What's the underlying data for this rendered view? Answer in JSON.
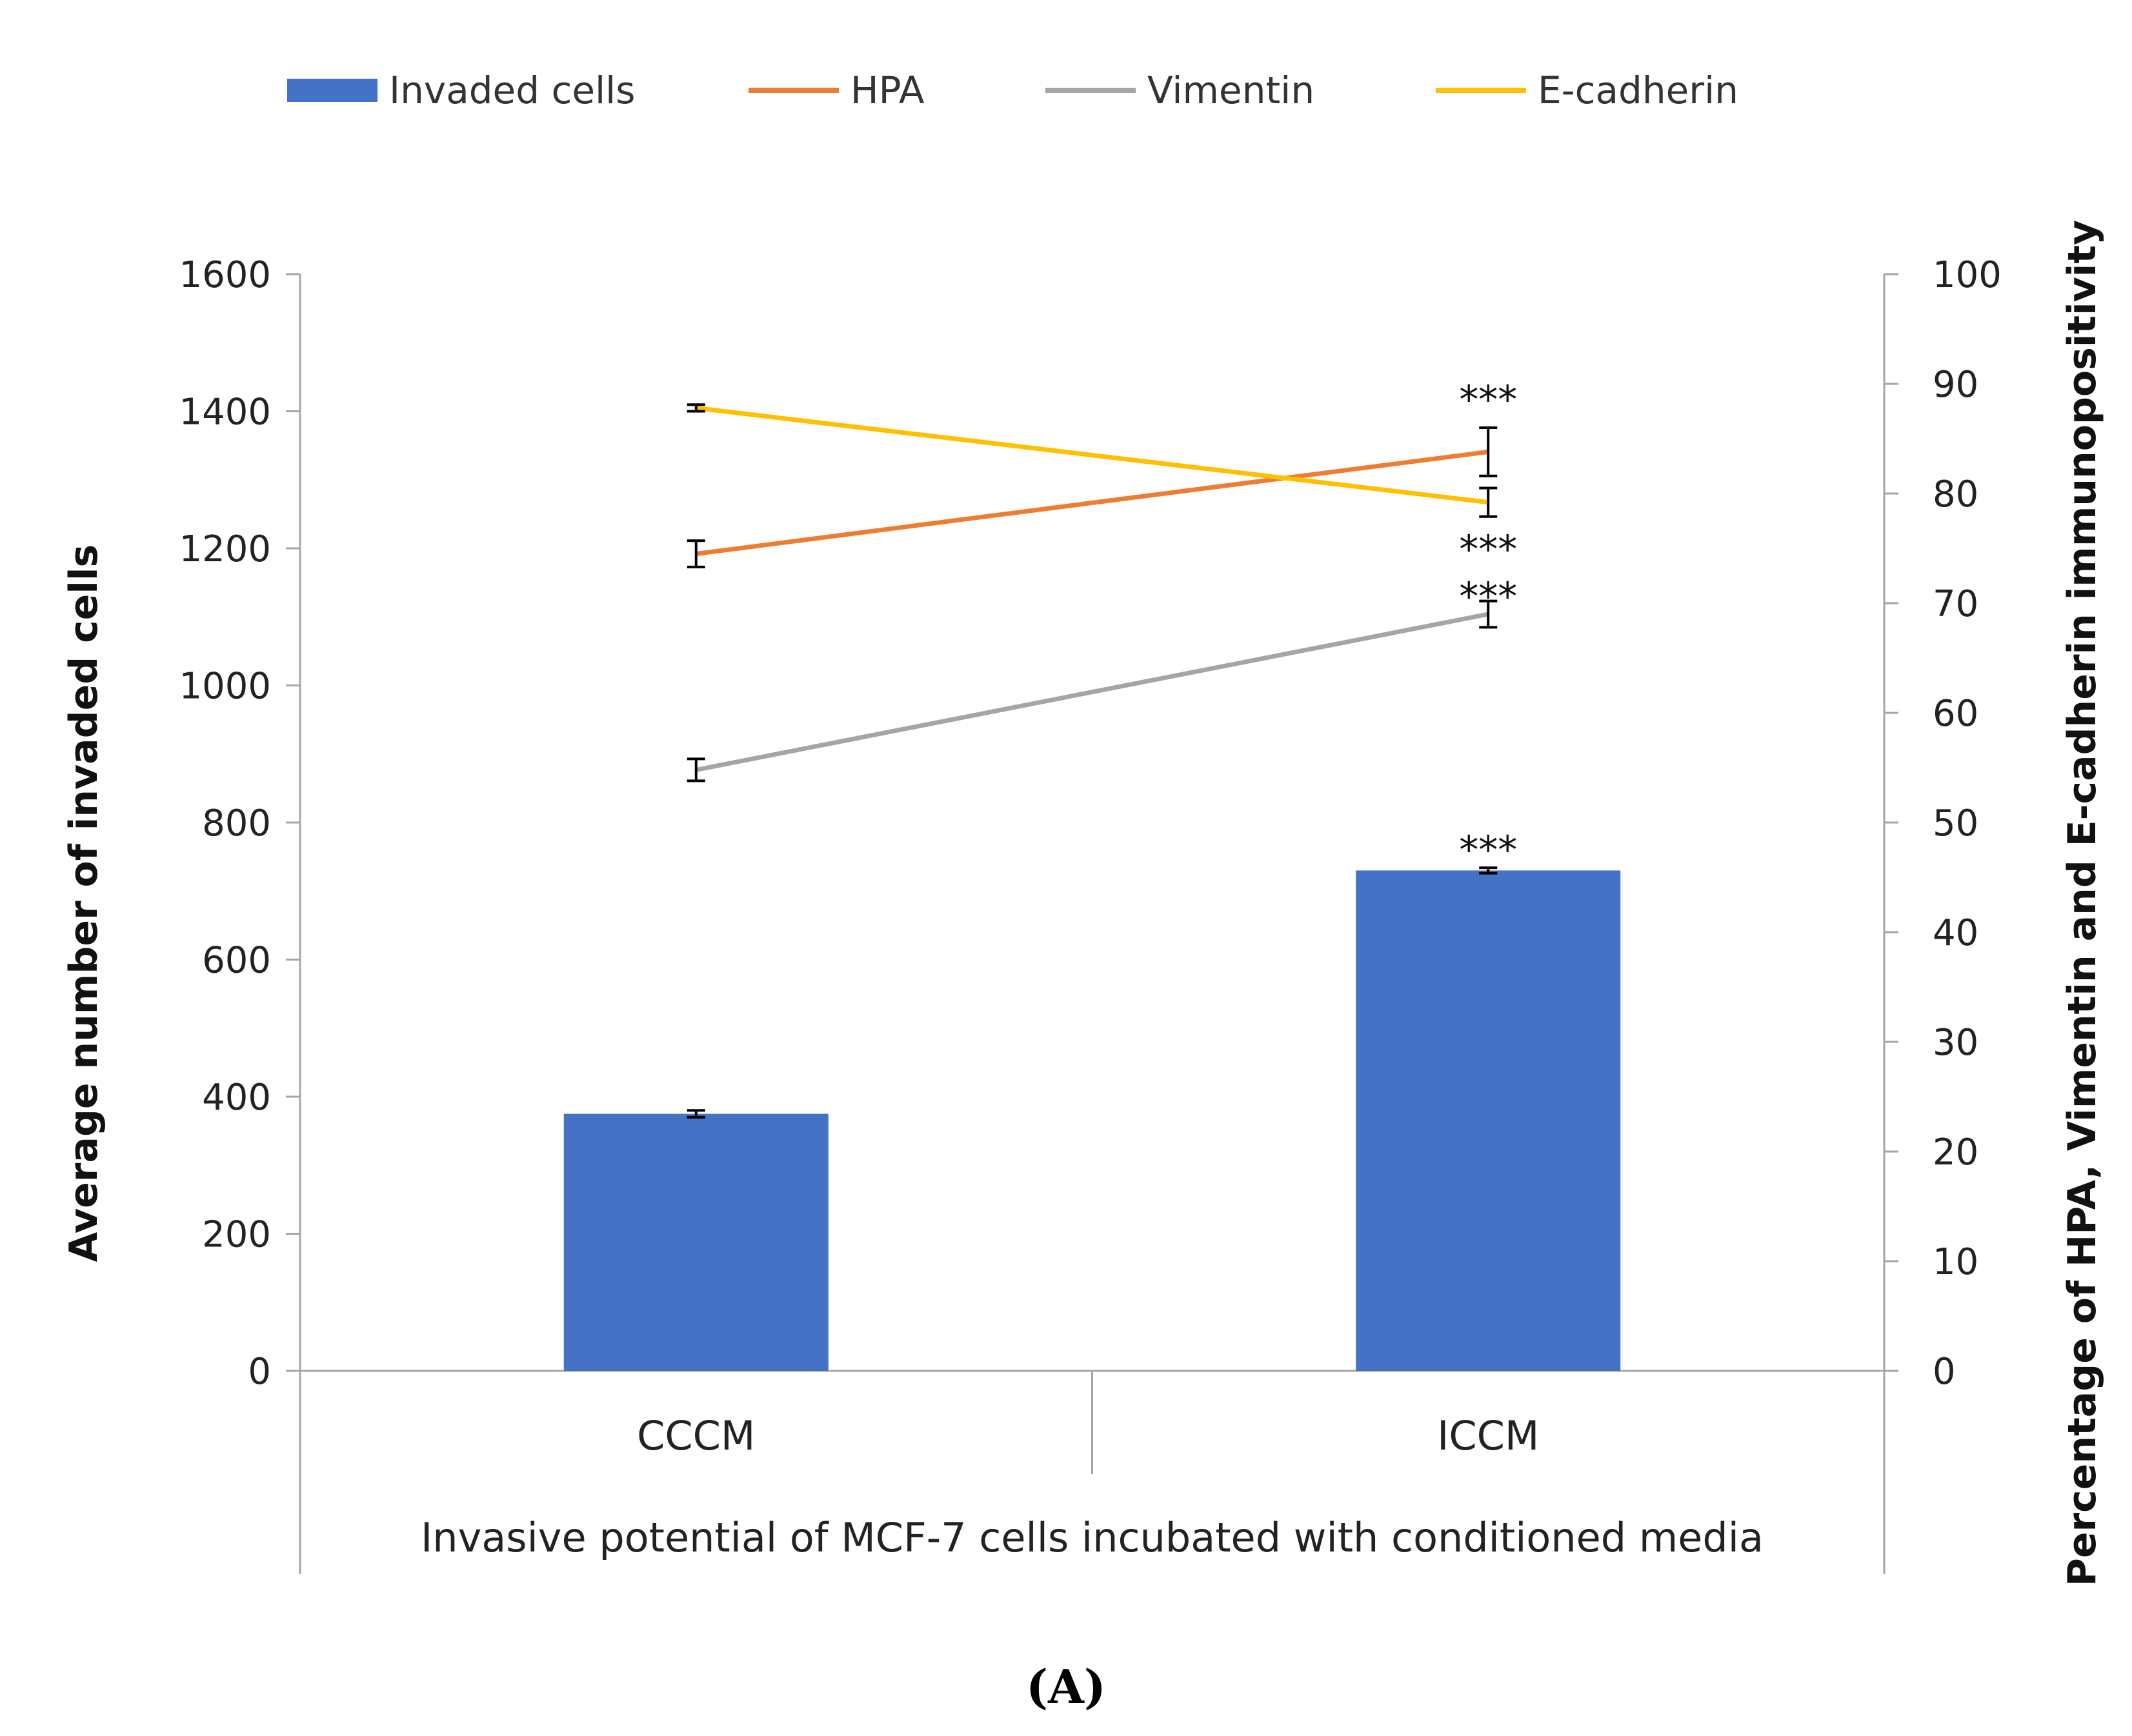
{
  "chart_data": {
    "type": "bar+line",
    "categories": [
      "CCCM",
      "ICCM"
    ],
    "xlabel": "Invasive potential of MCF-7 cells incubated with conditioned media",
    "ylabel_left": "Average number of invaded cells",
    "ylabel_right": "Percentage of HPA, Vimentin and E-cadherin immunopositivity",
    "ylim_left": [
      0,
      1600
    ],
    "ylim_right": [
      0,
      100
    ],
    "yticks_left": [
      "0",
      "200",
      "400",
      "600",
      "800",
      "1000",
      "1200",
      "1400",
      "1600"
    ],
    "yticks_right": [
      "0",
      "10",
      "20",
      "30",
      "40",
      "50",
      "60",
      "70",
      "80",
      "90",
      "100"
    ],
    "legend_position": "top",
    "panel_label": "(A)",
    "series": [
      {
        "name": "Invaded cells",
        "kind": "bar",
        "axis": "left",
        "color": "#4472C4",
        "values": [
          375,
          730
        ],
        "errors": [
          5,
          4
        ],
        "significance": [
          "",
          "***"
        ]
      },
      {
        "name": "HPA",
        "kind": "line",
        "axis": "right",
        "color": "#ED7D31",
        "values": [
          74.5,
          83.8
        ],
        "errors": [
          1.2,
          2.2
        ],
        "significance": [
          "",
          "***"
        ]
      },
      {
        "name": "Vimentin",
        "kind": "line",
        "axis": "right",
        "color": "#A5A5A5",
        "values": [
          54.8,
          69
        ],
        "errors": [
          1.0,
          1.2
        ],
        "significance": [
          "",
          "***"
        ]
      },
      {
        "name": "E-cadherin",
        "kind": "line",
        "axis": "right",
        "color": "#FFC000",
        "values": [
          87.8,
          79.2
        ],
        "errors": [
          0.3,
          1.3
        ],
        "significance": [
          "",
          "***"
        ]
      }
    ]
  }
}
